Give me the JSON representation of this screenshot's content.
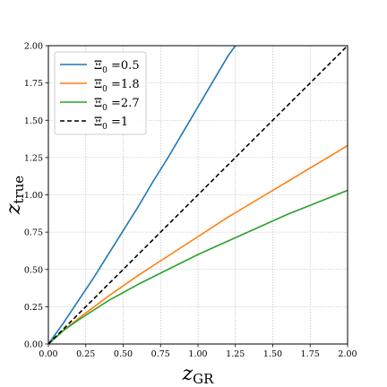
{
  "chart_data": {
    "type": "line",
    "xlabel_main": "z",
    "xlabel_sub": "GR",
    "ylabel_main": "z",
    "ylabel_sub": "true",
    "xlim": [
      0,
      2
    ],
    "ylim": [
      0,
      2
    ],
    "xticks": [
      0,
      0.25,
      0.5,
      0.75,
      1.0,
      1.25,
      1.5,
      1.75,
      2.0
    ],
    "yticks": [
      0,
      0.25,
      0.5,
      0.75,
      1.0,
      1.25,
      1.5,
      1.75,
      2.0
    ],
    "xtick_labels": [
      "0.00",
      "0.25",
      "0.50",
      "0.75",
      "1.00",
      "1.25",
      "1.50",
      "1.75",
      "2.00"
    ],
    "ytick_labels": [
      "0.00",
      "0.25",
      "0.50",
      "0.75",
      "1.00",
      "1.25",
      "1.50",
      "1.75",
      "2.00"
    ],
    "grid": true,
    "legend_position": "top-left",
    "series": [
      {
        "name": "Ξ0 =0.5",
        "legend_symbol": "Ξ",
        "legend_sub": "0",
        "legend_rest": " =0.5",
        "color": "#1f77b4",
        "dash": "solid",
        "x": [
          0,
          0.1,
          0.2,
          0.3,
          0.4,
          0.5,
          0.6,
          0.7,
          0.8,
          0.9,
          1.0,
          1.1,
          1.2,
          1.25
        ],
        "y": [
          0,
          0.14,
          0.29,
          0.44,
          0.6,
          0.76,
          0.92,
          1.09,
          1.25,
          1.42,
          1.59,
          1.76,
          1.93,
          2.0
        ]
      },
      {
        "name": "Ξ0 =1.8",
        "legend_symbol": "Ξ",
        "legend_sub": "0",
        "legend_rest": " =1.8",
        "color": "#ff7f0e",
        "dash": "solid",
        "x": [
          0,
          0.1,
          0.2,
          0.4,
          0.6,
          0.8,
          1.0,
          1.2,
          1.4,
          1.6,
          1.8,
          2.0
        ],
        "y": [
          0,
          0.09,
          0.17,
          0.32,
          0.46,
          0.59,
          0.72,
          0.85,
          0.97,
          1.09,
          1.21,
          1.33
        ]
      },
      {
        "name": "Ξ0 =2.7",
        "legend_symbol": "Ξ",
        "legend_sub": "0",
        "legend_rest": " =2.7",
        "color": "#2ca02c",
        "dash": "solid",
        "x": [
          0,
          0.1,
          0.2,
          0.4,
          0.6,
          0.8,
          1.0,
          1.2,
          1.4,
          1.6,
          1.8,
          2.0
        ],
        "y": [
          0,
          0.09,
          0.16,
          0.29,
          0.4,
          0.5,
          0.6,
          0.69,
          0.78,
          0.87,
          0.95,
          1.03
        ]
      },
      {
        "name": "Ξ0 =1",
        "legend_symbol": "Ξ",
        "legend_sub": "0",
        "legend_rest": " =1",
        "color": "#000000",
        "dash": "dashed",
        "x": [
          0,
          2.0
        ],
        "y": [
          0,
          2.0
        ]
      }
    ]
  }
}
